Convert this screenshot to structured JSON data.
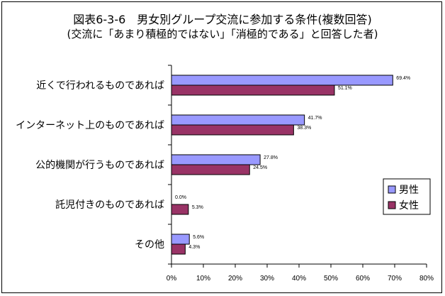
{
  "chart_data": {
    "type": "bar",
    "orientation": "horizontal",
    "title": "図表6-3-6　男女別グループ交流に参加する条件(複数回答)",
    "subtitle": "(交流に「あまり積極的ではない」「消極的である」と回答した者)",
    "categories": [
      "近くで行われるものであれば",
      "インターネット上のものであれば",
      "公的機関が行うものであれば",
      "託児付きのものであれば",
      "その他"
    ],
    "series": [
      {
        "name": "男性",
        "color": "#9999ff",
        "values": [
          69.4,
          41.7,
          27.8,
          0.0,
          5.6
        ],
        "labels": [
          "69.4%",
          "41.7%",
          "27.8%",
          "0.0%",
          "5.6%"
        ]
      },
      {
        "name": "女性",
        "color": "#993366",
        "values": [
          51.1,
          38.3,
          24.5,
          5.3,
          4.3
        ],
        "labels": [
          "51.1%",
          "38.3%",
          "24.5%",
          "5.3%",
          "4.3%"
        ]
      }
    ],
    "xlim": [
      0,
      80
    ],
    "xticks": [
      0,
      10,
      20,
      30,
      40,
      50,
      60,
      70,
      80
    ],
    "xtick_labels": [
      "0%",
      "10%",
      "20%",
      "30%",
      "40%",
      "50%",
      "60%",
      "70%",
      "80%"
    ],
    "legend": "right",
    "grid": false
  }
}
